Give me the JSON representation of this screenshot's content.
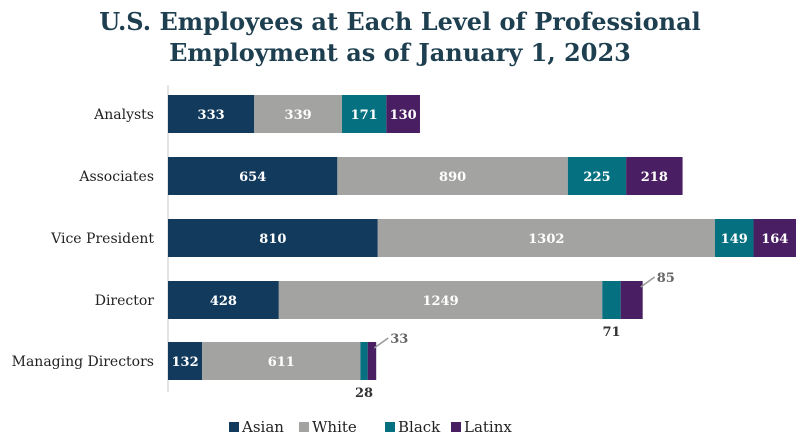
{
  "chart_data": {
    "type": "bar",
    "orientation": "horizontal",
    "stacked": true,
    "title_line1": "U.S. Employees at Each Level of Professional",
    "title_line2": "Employment as of January 1, 2023",
    "categories": [
      "Analysts",
      "Associates",
      "Vice President",
      "Director",
      "Managing Directors"
    ],
    "series": [
      {
        "name": "Asian",
        "color": "#123a5c",
        "values": [
          333,
          654,
          810,
          428,
          132
        ]
      },
      {
        "name": "White",
        "color": "#a3a3a1",
        "values": [
          339,
          890,
          1302,
          1249,
          611
        ]
      },
      {
        "name": "Black",
        "color": "#05707f",
        "values": [
          171,
          225,
          149,
          71,
          28
        ]
      },
      {
        "name": "Latinx",
        "color": "#4a1e62",
        "values": [
          130,
          218,
          164,
          85,
          33
        ]
      }
    ],
    "xlim": [
      0,
      2425
    ],
    "xlabel": "",
    "ylabel": "",
    "grid": false,
    "legend_position": "bottom"
  }
}
